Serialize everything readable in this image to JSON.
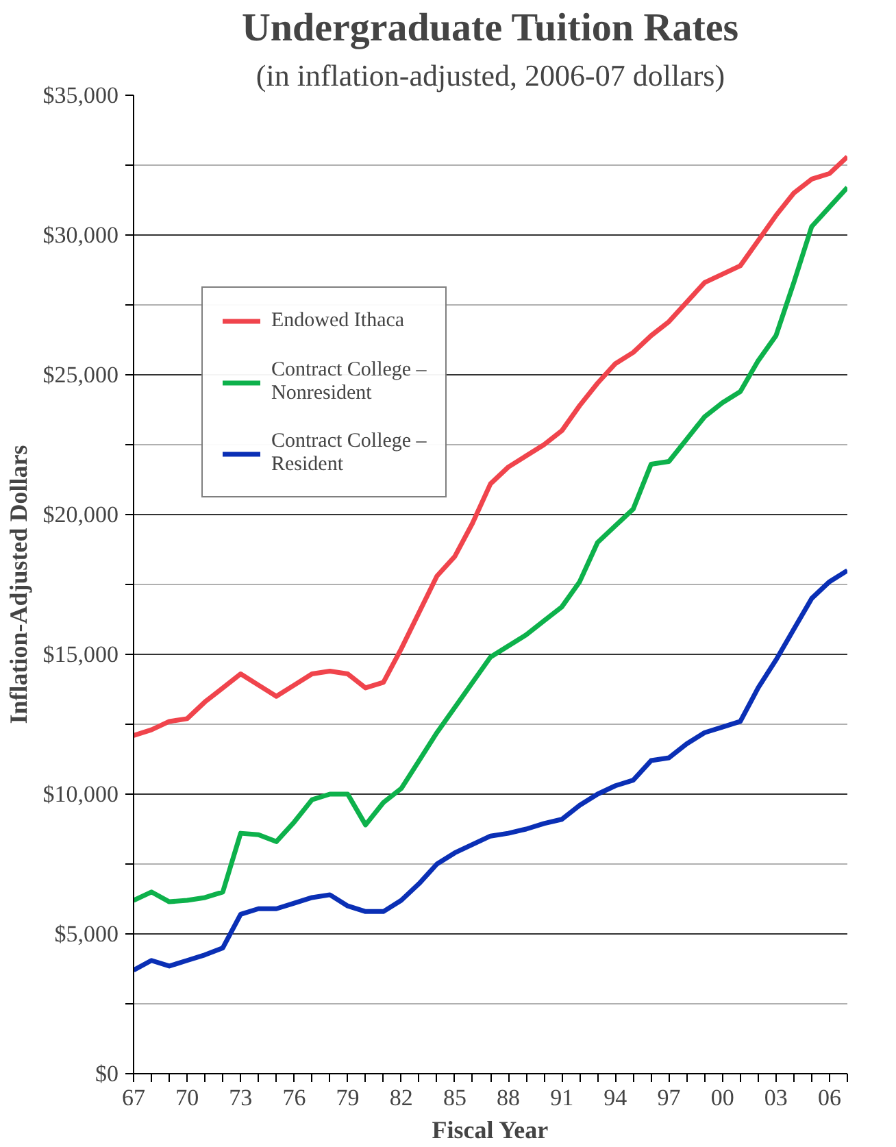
{
  "chart_data": {
    "type": "line",
    "title": "Undergraduate Tuition Rates",
    "subtitle": "(in inflation-adjusted, 2006-07 dollars)",
    "xlabel": "Fiscal Year",
    "ylabel": "Inflation-Adjusted Dollars",
    "x": [
      1967,
      1968,
      1969,
      1970,
      1971,
      1972,
      1973,
      1974,
      1975,
      1976,
      1977,
      1978,
      1979,
      1980,
      1981,
      1982,
      1983,
      1984,
      1985,
      1986,
      1987,
      1988,
      1989,
      1990,
      1991,
      1992,
      1993,
      1994,
      1995,
      1996,
      1997,
      1998,
      1999,
      2000,
      2001,
      2002,
      2003,
      2004,
      2005,
      2006,
      2007
    ],
    "series": [
      {
        "name": "Endowed Ithaca",
        "color": "#f0444c",
        "values": [
          12100,
          12300,
          12600,
          12700,
          13300,
          13800,
          14300,
          13900,
          13500,
          13900,
          14300,
          14400,
          14300,
          13800,
          14000,
          15200,
          16500,
          17800,
          18500,
          19700,
          21100,
          21700,
          22100,
          22500,
          23000,
          23900,
          24700,
          25400,
          25800,
          26400,
          26900,
          27600,
          28300,
          28600,
          28900,
          29800,
          30700,
          31500,
          32000,
          32200,
          32800
        ]
      },
      {
        "name": "Contract College –\nNonresident",
        "color": "#0db14b",
        "values": [
          6200,
          6500,
          6150,
          6200,
          6300,
          6500,
          8600,
          8550,
          8300,
          9000,
          9800,
          10000,
          10000,
          8900,
          9700,
          10200,
          11200,
          12200,
          13100,
          14000,
          14900,
          15300,
          15700,
          16200,
          16700,
          17600,
          19000,
          19600,
          20200,
          21800,
          21900,
          22700,
          23500,
          24000,
          24400,
          25500,
          26400,
          28300,
          30300,
          31000,
          31700
        ]
      },
      {
        "name": "Contract College –\nResident",
        "color": "#0a2fb5",
        "values": [
          3700,
          4050,
          3850,
          4050,
          4250,
          4500,
          5700,
          5900,
          5900,
          6100,
          6300,
          6400,
          6000,
          5800,
          5800,
          6200,
          6800,
          7500,
          7900,
          8200,
          8500,
          8600,
          8750,
          8950,
          9100,
          9600,
          10000,
          10300,
          10500,
          11200,
          11300,
          11800,
          12200,
          12400,
          12600,
          13800,
          14800,
          15900,
          17000,
          17600,
          18000
        ]
      }
    ],
    "xlim": [
      1967,
      2007
    ],
    "xticks": [
      {
        "value": 1967,
        "label": "67"
      },
      {
        "value": 1968,
        "label": null
      },
      {
        "value": 1969,
        "label": null
      },
      {
        "value": 1970,
        "label": "70"
      },
      {
        "value": 1971,
        "label": null
      },
      {
        "value": 1972,
        "label": null
      },
      {
        "value": 1973,
        "label": "73"
      },
      {
        "value": 1974,
        "label": null
      },
      {
        "value": 1975,
        "label": null
      },
      {
        "value": 1976,
        "label": "76"
      },
      {
        "value": 1977,
        "label": null
      },
      {
        "value": 1978,
        "label": null
      },
      {
        "value": 1979,
        "label": "79"
      },
      {
        "value": 1980,
        "label": null
      },
      {
        "value": 1981,
        "label": null
      },
      {
        "value": 1982,
        "label": "82"
      },
      {
        "value": 1983,
        "label": null
      },
      {
        "value": 1984,
        "label": null
      },
      {
        "value": 1985,
        "label": "85"
      },
      {
        "value": 1986,
        "label": null
      },
      {
        "value": 1987,
        "label": null
      },
      {
        "value": 1988,
        "label": "88"
      },
      {
        "value": 1989,
        "label": null
      },
      {
        "value": 1990,
        "label": null
      },
      {
        "value": 1991,
        "label": "91"
      },
      {
        "value": 1992,
        "label": null
      },
      {
        "value": 1993,
        "label": null
      },
      {
        "value": 1994,
        "label": "94"
      },
      {
        "value": 1995,
        "label": null
      },
      {
        "value": 1996,
        "label": null
      },
      {
        "value": 1997,
        "label": "97"
      },
      {
        "value": 1998,
        "label": null
      },
      {
        "value": 1999,
        "label": null
      },
      {
        "value": 2000,
        "label": "00"
      },
      {
        "value": 2001,
        "label": null
      },
      {
        "value": 2002,
        "label": null
      },
      {
        "value": 2003,
        "label": "03"
      },
      {
        "value": 2004,
        "label": null
      },
      {
        "value": 2005,
        "label": null
      },
      {
        "value": 2006,
        "label": "06"
      },
      {
        "value": 2007,
        "label": null
      }
    ],
    "ylim": [
      0,
      35000
    ],
    "yticks": [
      {
        "value": 0,
        "label": "$0"
      },
      {
        "value": 2500,
        "label": null
      },
      {
        "value": 5000,
        "label": "$5,000"
      },
      {
        "value": 7500,
        "label": null
      },
      {
        "value": 10000,
        "label": "$10,000"
      },
      {
        "value": 12500,
        "label": null
      },
      {
        "value": 15000,
        "label": "$15,000"
      },
      {
        "value": 17500,
        "label": null
      },
      {
        "value": 20000,
        "label": "$20,000"
      },
      {
        "value": 22500,
        "label": null
      },
      {
        "value": 25000,
        "label": "$25,000"
      },
      {
        "value": 27500,
        "label": null
      },
      {
        "value": 30000,
        "label": "$30,000"
      },
      {
        "value": 32500,
        "label": null
      },
      {
        "value": 35000,
        "label": "$35,000"
      }
    ],
    "grid": "y",
    "legend": "top left",
    "marker": "none",
    "line_style": "solid"
  }
}
